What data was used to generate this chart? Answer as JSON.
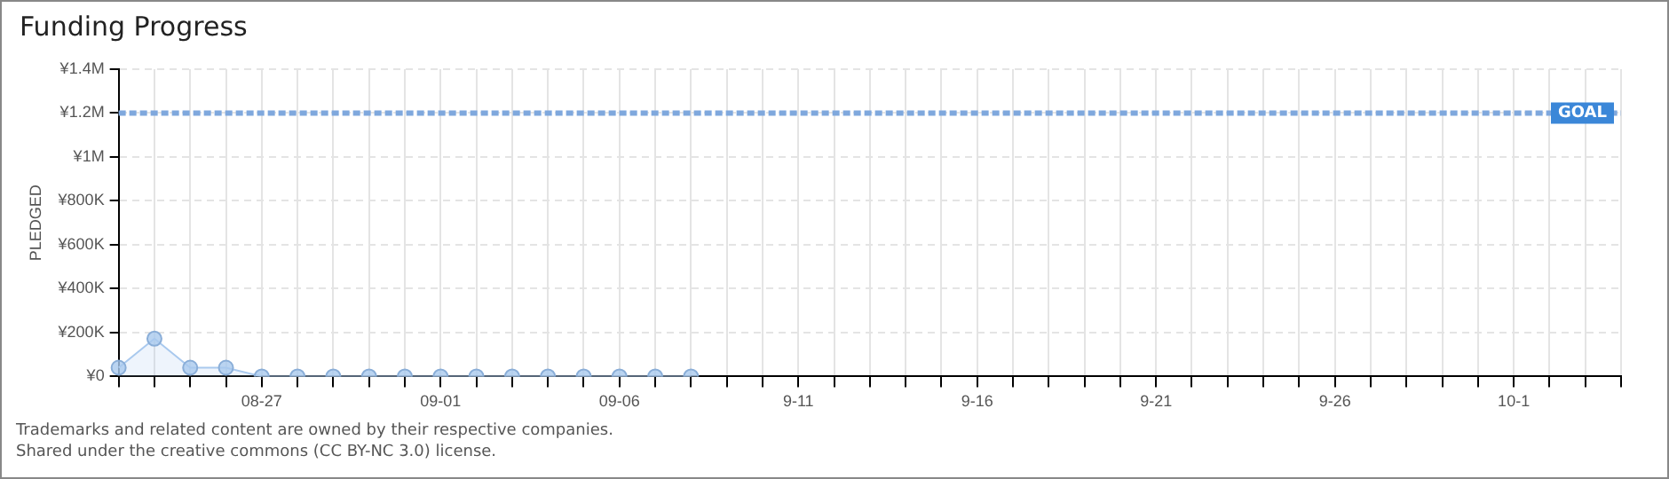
{
  "chart_data": {
    "type": "area",
    "title": "Funding Progress",
    "ylabel": "PLEDGED",
    "categories": [
      null,
      null,
      null,
      null,
      "08-27",
      null,
      null,
      null,
      null,
      "09-01",
      null,
      null,
      null,
      null,
      "09-06",
      null,
      null,
      null,
      null,
      "9-11",
      null,
      null,
      null,
      null,
      "9-16",
      null,
      null,
      null,
      null,
      "9-21",
      null,
      null,
      null,
      null,
      "9-26",
      null,
      null,
      null,
      null,
      "10-1",
      null,
      null,
      null
    ],
    "series": [
      {
        "color": "#a9c9ee",
        "values": [
          40000,
          172000,
          40000,
          40000,
          0,
          0,
          0,
          0,
          0,
          0,
          0,
          0,
          0,
          0,
          0,
          0,
          0,
          null,
          null,
          null,
          null,
          null,
          null,
          null,
          null,
          null,
          null,
          null,
          null,
          null,
          null,
          null,
          null,
          null,
          null,
          null,
          null,
          null,
          null,
          null,
          null,
          null,
          null
        ]
      }
    ],
    "ylim": [
      0,
      1400000
    ],
    "yticks": [
      {
        "value": 0,
        "label": "¥0"
      },
      {
        "value": 200000,
        "label": "¥200K"
      },
      {
        "value": 400000,
        "label": "¥400K"
      },
      {
        "value": 600000,
        "label": "¥600K"
      },
      {
        "value": 800000,
        "label": "¥800K"
      },
      {
        "value": 1000000,
        "label": "¥1M"
      },
      {
        "value": 1200000,
        "label": "¥1.2M"
      },
      {
        "value": 1400000,
        "label": "¥1.4M"
      }
    ],
    "ref_lines": [
      {
        "axis": "y",
        "value": 1200000,
        "label": "GOAL",
        "color": "#7fa8dd",
        "line_style": "dashed"
      }
    ],
    "grid": true,
    "legend": false,
    "marker": "circle",
    "annotations": [
      "Trademarks and related content are owned by their respective companies.",
      "Shared under the creative commons (CC BY-NC 3.0) license."
    ]
  }
}
